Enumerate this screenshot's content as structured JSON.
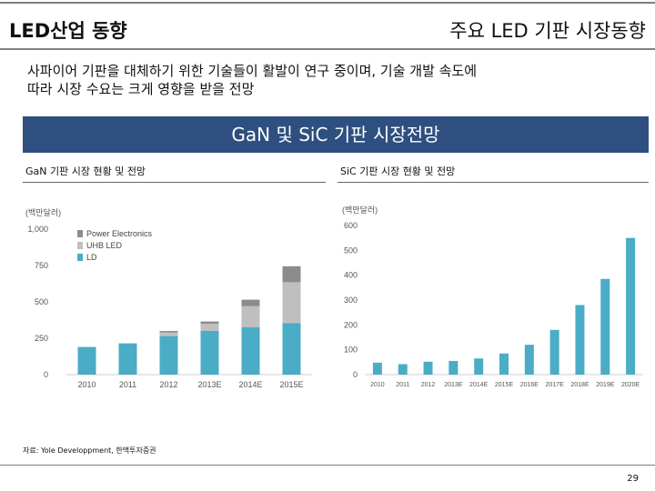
{
  "header": {
    "section": "LED산업 동향",
    "title": "주요 LED 기판 시장동향"
  },
  "description": [
    "사파이어 기판을 대체하기 위한 기술들이 활발이 연구 중이며, 기술 개발 속도에",
    "따라 시장 수요는 크게 영향을 받을 전망"
  ],
  "banner": {
    "title": "GaN 및 SiC 기판 시장전망"
  },
  "colors": {
    "banner_bg": "#2e4f7f",
    "ld": "#4bacc6",
    "uhb": "#bfbfbf",
    "power": "#8c8c8c"
  },
  "chart_data": [
    {
      "type": "bar",
      "stacked": true,
      "title": "GaN 기판 시장 현황 및 전망",
      "ylabel": "(백만달러)",
      "ylim": [
        0,
        1000
      ],
      "ytick_labels": [
        "0",
        "250",
        "500",
        "750",
        "1,000"
      ],
      "categories": [
        "2010",
        "2011",
        "2012",
        "2013E",
        "2014E",
        "2015E"
      ],
      "series": [
        {
          "name": "LD",
          "values": [
            190,
            215,
            265,
            300,
            325,
            355
          ]
        },
        {
          "name": "UHB LED",
          "values": [
            0,
            0,
            25,
            50,
            145,
            280
          ]
        },
        {
          "name": "Power Electronics",
          "values": [
            0,
            0,
            10,
            15,
            45,
            110
          ]
        }
      ],
      "legend": [
        "Power Electronics",
        "UHB LED",
        "LD"
      ]
    },
    {
      "type": "bar",
      "title": "SiC 기판 시장 현황 및 전망",
      "ylabel": "(백만달러)",
      "ylim": [
        0,
        600
      ],
      "ytick_labels": [
        "0",
        "100",
        "200",
        "300",
        "400",
        "500",
        "600"
      ],
      "categories": [
        "2010",
        "2011",
        "2012",
        "2013E",
        "2014E",
        "2015E",
        "2016E",
        "2017E",
        "2018E",
        "2019E",
        "2020E"
      ],
      "values": [
        48,
        42,
        52,
        55,
        65,
        85,
        120,
        180,
        280,
        385,
        550
      ]
    }
  ],
  "footer": {
    "source": "자료: Yole Developpment, 한맥투자증권",
    "page": "29"
  }
}
